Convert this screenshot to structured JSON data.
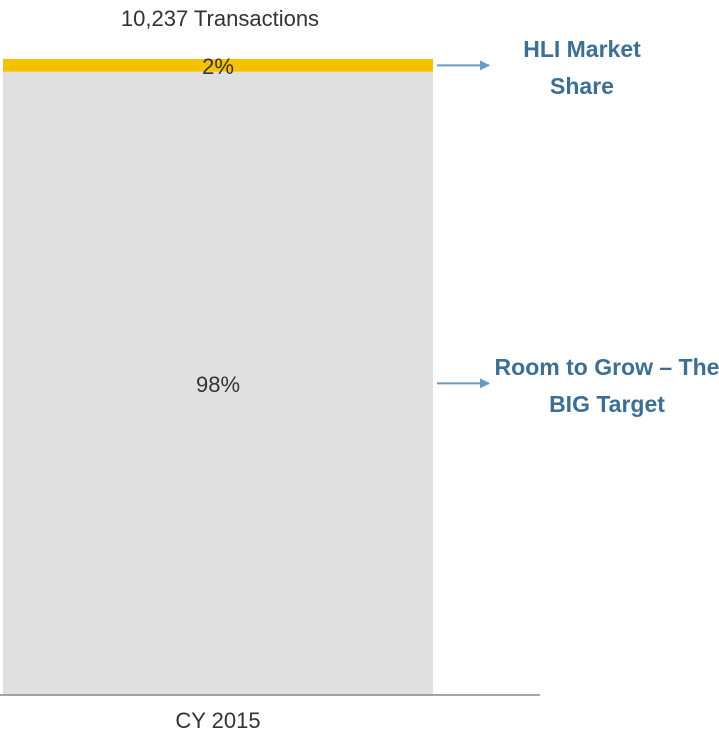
{
  "chart_data": {
    "type": "stacked_bar",
    "title": "10,237 Transactions",
    "categories": [
      "CY 2015"
    ],
    "ylim": [
      0,
      100
    ],
    "series": [
      {
        "name": "Room to Grow – The BIG Target",
        "color": "#e0e0e0",
        "values": [
          98
        ],
        "value_labels": [
          "98%"
        ]
      },
      {
        "name": "HLI Market Share",
        "color": "#f5c100",
        "values": [
          2
        ],
        "value_labels": [
          "2%"
        ]
      }
    ]
  }
}
